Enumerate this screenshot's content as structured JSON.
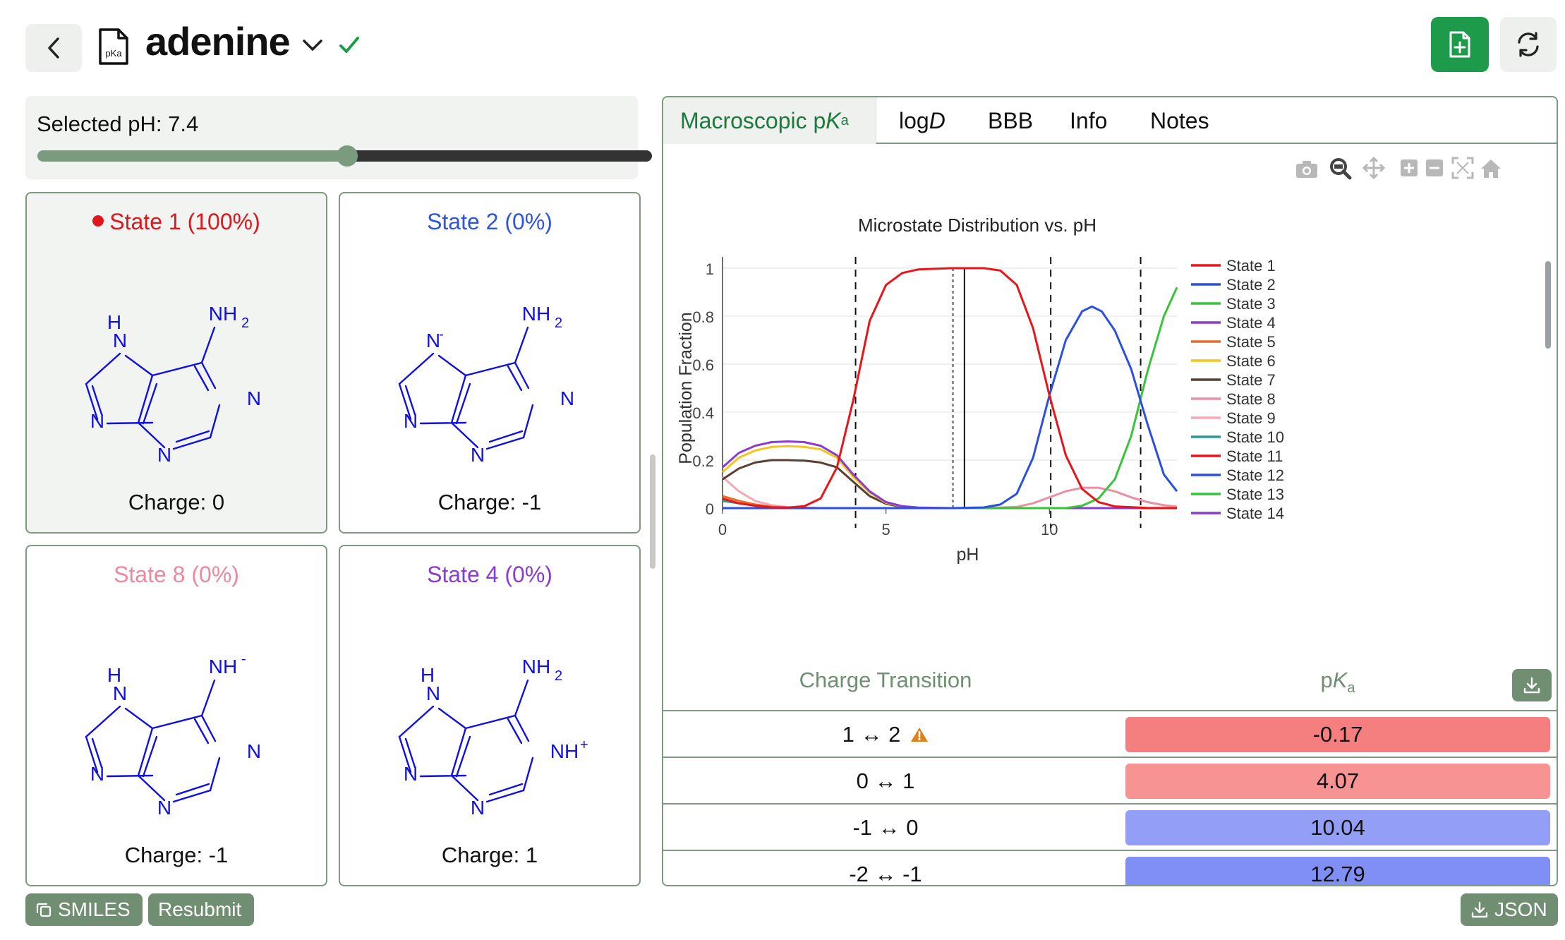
{
  "header": {
    "title": "adenine",
    "doc_icon_text": "pKa"
  },
  "ph": {
    "label": "Selected pH: 7.4",
    "value": 7.4,
    "min": 0,
    "max": 14
  },
  "states": [
    {
      "title": "State 1 (100%)",
      "charge": "Charge: 0",
      "color": "#e0161d",
      "selected": true,
      "labels": {
        "nh": "NH",
        "nh_sub": "2",
        "h": "H",
        "n7": "N",
        "n1": "N",
        "n3": "N",
        "n9": "N"
      }
    },
    {
      "title": "State 2 (0%)",
      "charge": "Charge: -1",
      "color": "#2f55e0",
      "selected": false,
      "labels": {
        "nh": "NH",
        "nh_sub": "2",
        "n7": "N",
        "n7_sup": "-",
        "n1": "N",
        "n3": "N",
        "n9": "N"
      }
    },
    {
      "title": "State 8 (0%)",
      "charge": "Charge: -1",
      "color": "#ea8aa0",
      "selected": false,
      "labels": {
        "nh": "NH",
        "nh_sup": "-",
        "h": "H",
        "n7": "N",
        "n1": "N",
        "n3": "N",
        "n9": "N"
      }
    },
    {
      "title": "State 4 (0%)",
      "charge": "Charge: 1",
      "color": "#8a3ccf",
      "selected": false,
      "labels": {
        "nh": "NH",
        "nh_sub": "2",
        "h": "H",
        "n7": "N",
        "n1": "NH",
        "n1_sup": "+",
        "n3": "N",
        "n9": "N"
      }
    }
  ],
  "buttons": {
    "smiles": "SMILES",
    "resubmit": "Resubmit",
    "json": "JSON"
  },
  "tabs": [
    {
      "label": "Macroscopic p",
      "italic": "K",
      "sub": "a",
      "active": true
    },
    {
      "label": "log",
      "italic": "D",
      "active": false
    },
    {
      "label": "BBB",
      "active": false
    },
    {
      "label": "Info",
      "active": false
    },
    {
      "label": "Notes",
      "active": false
    }
  ],
  "chart_data": {
    "type": "line",
    "title": "Microstate Distribution vs. pH",
    "xlabel": "pH",
    "ylabel": "Population Fraction",
    "xlim": [
      0,
      13.9
    ],
    "ylim": [
      0,
      1
    ],
    "x_ticks": [
      "0",
      "5",
      "10"
    ],
    "y_ticks": [
      "0",
      "0.2",
      "0.4",
      "0.6",
      "0.8",
      "1"
    ],
    "vlines_dashed": [
      4.07,
      10.04,
      12.79
    ],
    "vline_dotted": 7.05,
    "vline_selected": 7.4,
    "legend_position": "right",
    "series": [
      {
        "name": "State 1",
        "color": "#e8151b",
        "points": [
          [
            0,
            0.04
          ],
          [
            0.5,
            0.02
          ],
          [
            1,
            0.01
          ],
          [
            1.5,
            0.003
          ],
          [
            2,
            0.002
          ],
          [
            2.5,
            0.008
          ],
          [
            3,
            0.04
          ],
          [
            3.5,
            0.17
          ],
          [
            4,
            0.45
          ],
          [
            4.5,
            0.78
          ],
          [
            5,
            0.93
          ],
          [
            5.5,
            0.98
          ],
          [
            6,
            0.995
          ],
          [
            7,
            1
          ],
          [
            8,
            1
          ],
          [
            8.5,
            0.99
          ],
          [
            9,
            0.93
          ],
          [
            9.5,
            0.75
          ],
          [
            10,
            0.47
          ],
          [
            10.5,
            0.22
          ],
          [
            11,
            0.08
          ],
          [
            11.5,
            0.025
          ],
          [
            12,
            0.007
          ],
          [
            13,
            0.001
          ],
          [
            13.9,
            0
          ]
        ]
      },
      {
        "name": "State 2",
        "color": "#2b4fe0",
        "points": [
          [
            0,
            0
          ],
          [
            7,
            0
          ],
          [
            8,
            0.003
          ],
          [
            8.5,
            0.015
          ],
          [
            9,
            0.06
          ],
          [
            9.5,
            0.21
          ],
          [
            10,
            0.47
          ],
          [
            10.5,
            0.7
          ],
          [
            11,
            0.82
          ],
          [
            11.3,
            0.84
          ],
          [
            11.6,
            0.82
          ],
          [
            12,
            0.74
          ],
          [
            12.5,
            0.58
          ],
          [
            13,
            0.35
          ],
          [
            13.5,
            0.14
          ],
          [
            13.9,
            0.07
          ]
        ]
      },
      {
        "name": "State 3",
        "color": "#38c43a",
        "points": [
          [
            0,
            0
          ],
          [
            10.5,
            0
          ],
          [
            11,
            0.01
          ],
          [
            11.5,
            0.04
          ],
          [
            12,
            0.12
          ],
          [
            12.5,
            0.3
          ],
          [
            13,
            0.57
          ],
          [
            13.5,
            0.8
          ],
          [
            13.9,
            0.92
          ]
        ]
      },
      {
        "name": "State 4",
        "color": "#8a3ccf",
        "points": [
          [
            0,
            0.17
          ],
          [
            0.5,
            0.23
          ],
          [
            1,
            0.26
          ],
          [
            1.5,
            0.275
          ],
          [
            2,
            0.278
          ],
          [
            2.5,
            0.275
          ],
          [
            3,
            0.26
          ],
          [
            3.5,
            0.22
          ],
          [
            4,
            0.14
          ],
          [
            4.5,
            0.07
          ],
          [
            5,
            0.025
          ],
          [
            5.5,
            0.008
          ],
          [
            6,
            0.002
          ],
          [
            7,
            0
          ],
          [
            13.9,
            0
          ]
        ]
      },
      {
        "name": "State 5",
        "color": "#e86a2a",
        "points": [
          [
            0,
            0.05
          ],
          [
            0.5,
            0.03
          ],
          [
            1,
            0.015
          ],
          [
            1.5,
            0.006
          ],
          [
            2,
            0.002
          ],
          [
            3,
            0
          ],
          [
            13.9,
            0
          ]
        ]
      },
      {
        "name": "State 6",
        "color": "#f2c61a",
        "points": [
          [
            0,
            0.15
          ],
          [
            0.5,
            0.21
          ],
          [
            1,
            0.24
          ],
          [
            1.5,
            0.255
          ],
          [
            2,
            0.258
          ],
          [
            2.5,
            0.255
          ],
          [
            3,
            0.245
          ],
          [
            3.5,
            0.21
          ],
          [
            4,
            0.13
          ],
          [
            4.5,
            0.065
          ],
          [
            5,
            0.022
          ],
          [
            5.5,
            0.007
          ],
          [
            6,
            0.002
          ],
          [
            7,
            0
          ],
          [
            13.9,
            0
          ]
        ]
      },
      {
        "name": "State 7",
        "color": "#5a4030",
        "points": [
          [
            0,
            0.12
          ],
          [
            0.5,
            0.165
          ],
          [
            1,
            0.19
          ],
          [
            1.5,
            0.2
          ],
          [
            2,
            0.2
          ],
          [
            2.5,
            0.198
          ],
          [
            3,
            0.19
          ],
          [
            3.5,
            0.17
          ],
          [
            4,
            0.11
          ],
          [
            4.5,
            0.05
          ],
          [
            5,
            0.018
          ],
          [
            5.5,
            0.005
          ],
          [
            6,
            0.001
          ],
          [
            7,
            0
          ],
          [
            13.9,
            0
          ]
        ]
      },
      {
        "name": "State 8",
        "color": "#e890a5",
        "points": [
          [
            0,
            0
          ],
          [
            8,
            0
          ],
          [
            9,
            0.005
          ],
          [
            9.5,
            0.02
          ],
          [
            10,
            0.045
          ],
          [
            10.5,
            0.07
          ],
          [
            11,
            0.085
          ],
          [
            11.5,
            0.085
          ],
          [
            12,
            0.07
          ],
          [
            12.5,
            0.045
          ],
          [
            13,
            0.025
          ],
          [
            13.5,
            0.012
          ],
          [
            13.9,
            0.006
          ]
        ]
      },
      {
        "name": "State 9",
        "color": "#f2aab5",
        "points": [
          [
            0,
            0.13
          ],
          [
            0.5,
            0.07
          ],
          [
            1,
            0.03
          ],
          [
            1.5,
            0.012
          ],
          [
            2,
            0.004
          ],
          [
            3,
            0
          ],
          [
            13.9,
            0
          ]
        ]
      },
      {
        "name": "State 10",
        "color": "#2a9a90",
        "points": [
          [
            0,
            0.03
          ],
          [
            0.5,
            0.02
          ],
          [
            1,
            0.01
          ],
          [
            1.5,
            0.004
          ],
          [
            2,
            0.001
          ],
          [
            3,
            0
          ],
          [
            13.9,
            0
          ]
        ]
      },
      {
        "name": "State 11",
        "color": "#e8151b",
        "points": [
          [
            0,
            0
          ],
          [
            13.9,
            0
          ]
        ]
      },
      {
        "name": "State 12",
        "color": "#2b4fe0",
        "points": [
          [
            0,
            0
          ],
          [
            13.9,
            0
          ]
        ]
      },
      {
        "name": "State 13",
        "color": "#38c43a",
        "points": [
          [
            0,
            0
          ],
          [
            13.9,
            0
          ]
        ]
      },
      {
        "name": "State 14",
        "color": "#8a3ccf",
        "points": [
          [
            0,
            0
          ],
          [
            13.9,
            0
          ]
        ]
      }
    ]
  },
  "table": {
    "col_charge": "Charge Transition",
    "col_pka_prefix": "p",
    "col_pka_italic": "K",
    "col_pka_sub": "a",
    "rows": [
      {
        "transition": "1 ↔ 2",
        "pka": "-0.17",
        "color": "#f57f7f",
        "warning": true
      },
      {
        "transition": "0 ↔ 1",
        "pka": "4.07",
        "color": "#f79393",
        "warning": false
      },
      {
        "transition": "-1 ↔ 0",
        "pka": "10.04",
        "color": "#939ff7",
        "warning": false
      },
      {
        "transition": "-2 ↔ -1",
        "pka": "12.79",
        "color": "#7f8ff5",
        "warning": false
      }
    ]
  }
}
